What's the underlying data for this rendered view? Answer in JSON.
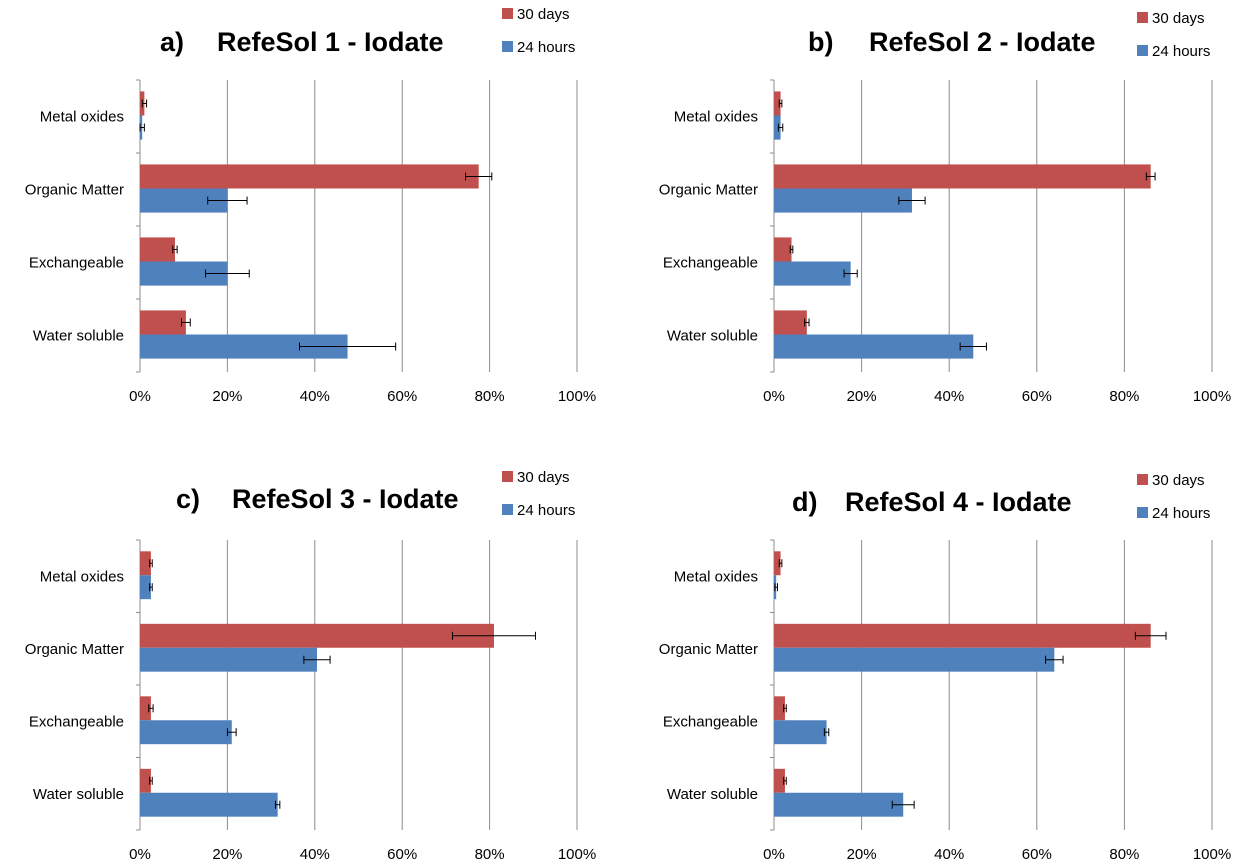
{
  "chart_data": [
    {
      "type": "bar",
      "orientation": "horizontal",
      "label": "a)",
      "title": "RefeSol 1 - Iodate",
      "categories": [
        "Metal oxides",
        "Organic Matter",
        "Exchangeable",
        "Water soluble"
      ],
      "series": [
        {
          "name": "30 days",
          "color": "#c0504d",
          "values": [
            1,
            77.5,
            8,
            10.5
          ],
          "errors": [
            0.5,
            3,
            0.5,
            1
          ]
        },
        {
          "name": "24 hours",
          "color": "#4f81bd",
          "values": [
            0.5,
            20,
            20,
            47.5
          ],
          "errors": [
            0.5,
            4.5,
            5,
            11
          ]
        }
      ],
      "xlim": [
        0,
        100
      ],
      "x_ticks": [
        "0%",
        "20%",
        "40%",
        "60%",
        "80%",
        "100%"
      ],
      "grid": true,
      "legend_position": "top-right"
    },
    {
      "type": "bar",
      "orientation": "horizontal",
      "label": "b)",
      "title": "RefeSol 2 - Iodate",
      "categories": [
        "Metal oxides",
        "Organic Matter",
        "Exchangeable",
        "Water soluble"
      ],
      "series": [
        {
          "name": "30 days",
          "color": "#c0504d",
          "values": [
            1.5,
            86,
            4,
            7.5
          ],
          "errors": [
            0.3,
            1,
            0.3,
            0.5
          ]
        },
        {
          "name": "24 hours",
          "color": "#4f81bd",
          "values": [
            1.5,
            31.5,
            17.5,
            45.5
          ],
          "errors": [
            0.5,
            3,
            1.5,
            3
          ]
        }
      ],
      "xlim": [
        0,
        100
      ],
      "x_ticks": [
        "0%",
        "20%",
        "40%",
        "60%",
        "80%",
        "100%"
      ],
      "grid": true,
      "legend_position": "top-right"
    },
    {
      "type": "bar",
      "orientation": "horizontal",
      "label": "c)",
      "title": "RefeSol 3 - Iodate",
      "categories": [
        "Metal oxides",
        "Organic Matter",
        "Exchangeable",
        "Water soluble"
      ],
      "series": [
        {
          "name": "30 days",
          "color": "#c0504d",
          "values": [
            2.5,
            81,
            2.5,
            2.5
          ],
          "errors": [
            0.3,
            9.5,
            0.5,
            0.3
          ]
        },
        {
          "name": "24 hours",
          "color": "#4f81bd",
          "values": [
            2.5,
            40.5,
            21,
            31.5
          ],
          "errors": [
            0.3,
            3,
            1,
            0.5
          ]
        }
      ],
      "xlim": [
        0,
        100
      ],
      "x_ticks": [
        "0%",
        "20%",
        "40%",
        "60%",
        "80%",
        "100%"
      ],
      "grid": true,
      "legend_position": "top-right"
    },
    {
      "type": "bar",
      "orientation": "horizontal",
      "label": "d)",
      "title": "RefeSol 4 - Iodate",
      "categories": [
        "Metal oxides",
        "Organic Matter",
        "Exchangeable",
        "Water soluble"
      ],
      "series": [
        {
          "name": "30 days",
          "color": "#c0504d",
          "values": [
            1.5,
            86,
            2.5,
            2.5
          ],
          "errors": [
            0.3,
            3.5,
            0.3,
            0.3
          ]
        },
        {
          "name": "24 hours",
          "color": "#4f81bd",
          "values": [
            0.5,
            64,
            12,
            29.5
          ],
          "errors": [
            0.3,
            2,
            0.5,
            2.5
          ]
        }
      ],
      "xlim": [
        0,
        100
      ],
      "x_ticks": [
        "0%",
        "20%",
        "40%",
        "60%",
        "80%",
        "100%"
      ],
      "grid": true,
      "legend_position": "top-right"
    }
  ]
}
